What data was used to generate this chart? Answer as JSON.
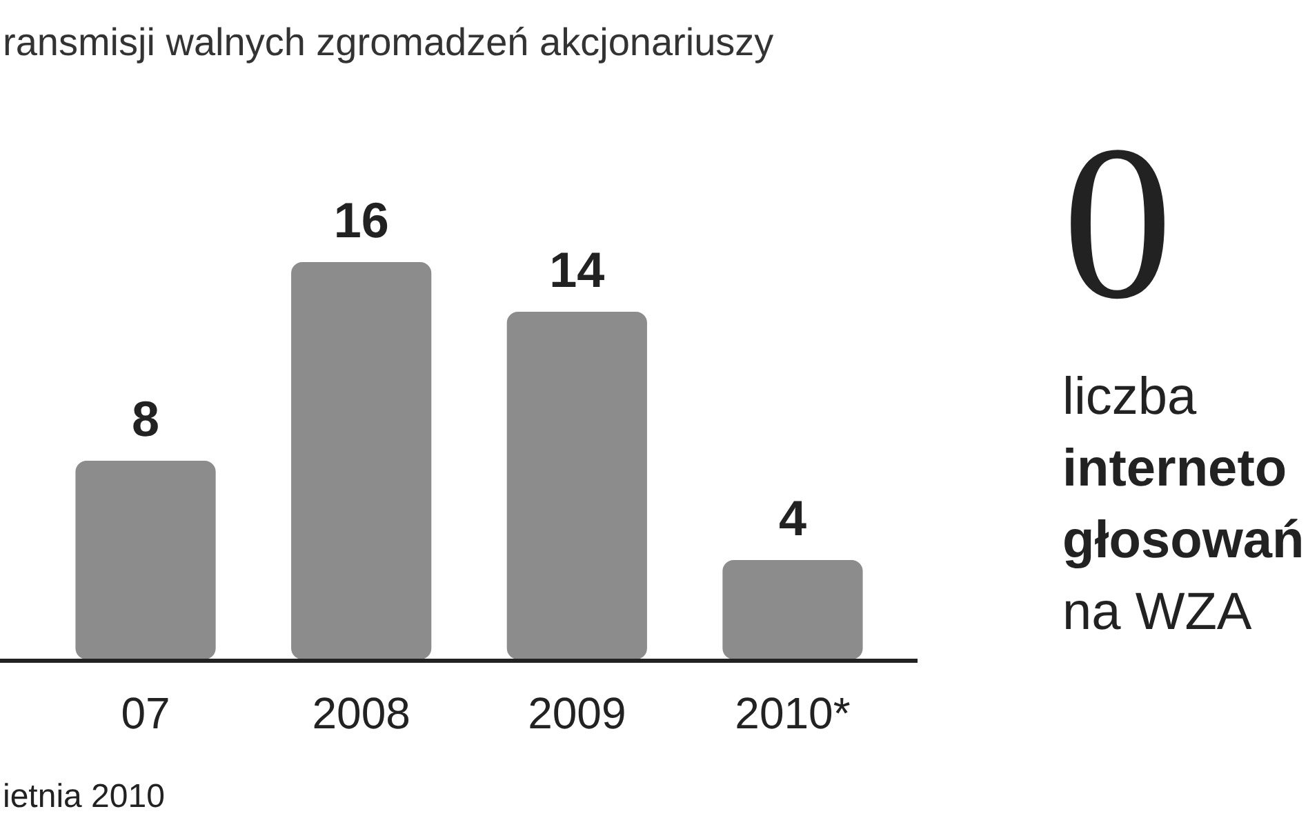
{
  "chart_data": {
    "type": "bar",
    "title": "ransmisji walnych zgromadzeń akcjonariuszy",
    "categories": [
      "07",
      "2008",
      "2009",
      "2010*"
    ],
    "values": [
      8,
      16,
      14,
      4
    ],
    "color": "#8c8c8c",
    "relative": false,
    "data_labels": true,
    "annotations": [
      "0",
      "liczba",
      "interneto",
      "głosowań",
      "na WZA",
      "ietnia 2010"
    ]
  }
}
